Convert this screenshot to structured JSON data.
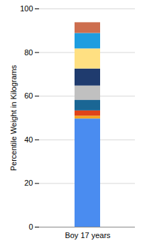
{
  "chart_data": {
    "type": "bar",
    "stacked": true,
    "ylabel": "Percentile Weight in Kilograms",
    "categories": [
      "Boy 17 years"
    ],
    "series": [
      {
        "color": "#4a8cf0",
        "values": [
          49.6
        ]
      },
      {
        "color": "#f5a623",
        "values": [
          1.3
        ]
      },
      {
        "color": "#e04418",
        "values": [
          2.4
        ]
      },
      {
        "color": "#1a6694",
        "values": [
          4.8
        ]
      },
      {
        "color": "#c0c0c0",
        "values": [
          6.6
        ]
      },
      {
        "color": "#1f3b6e",
        "values": [
          7.8
        ]
      },
      {
        "color": "#ffe082",
        "values": [
          9.2
        ]
      },
      {
        "color": "#1e9de0",
        "values": [
          7.1
        ]
      },
      {
        "color": "#cd6e4e",
        "values": [
          4.9
        ]
      }
    ],
    "ylim": [
      0,
      100
    ],
    "yticks": [
      0,
      20,
      40,
      60,
      80,
      100
    ],
    "grid": true
  }
}
